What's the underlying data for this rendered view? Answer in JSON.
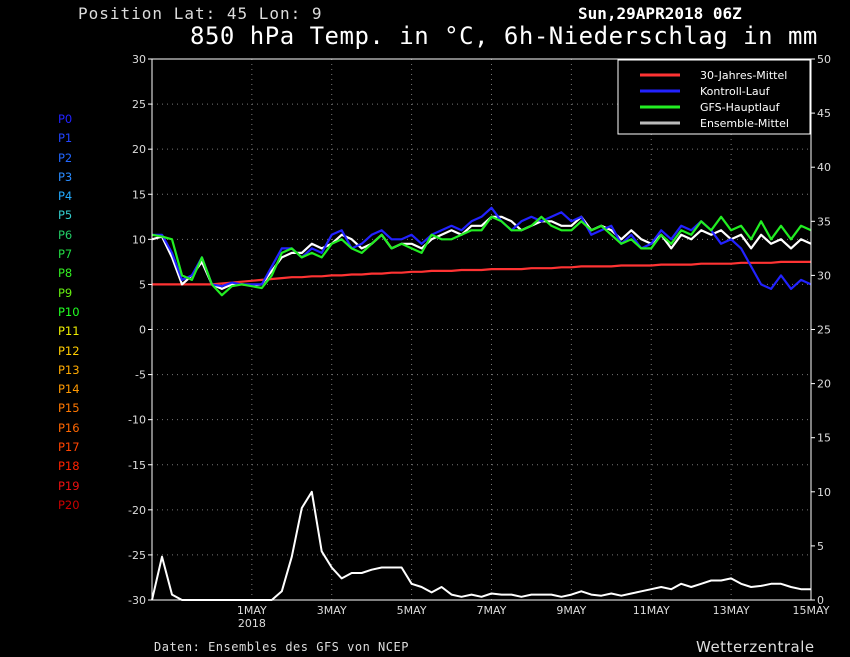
{
  "header": {
    "position": "Position   Lat: 45 Lon: 9",
    "date": "Sun,29APR2018 06Z",
    "title": "850 hPa Temp. in °C, 6h-Niederschlag in mm"
  },
  "footer": {
    "credit": "Daten: Ensembles des GFS von NCEP",
    "brand": "Wetterzentrale"
  },
  "members": {
    "labels": [
      "P0",
      "P1",
      "P2",
      "P3",
      "P4",
      "P5",
      "P6",
      "P7",
      "P8",
      "P9",
      "P10",
      "P11",
      "P12",
      "P13",
      "P14",
      "P15",
      "P16",
      "P17",
      "P18",
      "P19",
      "P20"
    ],
    "colors": [
      "#2222ff",
      "#2244ff",
      "#2266ff",
      "#2a8cff",
      "#22aaff",
      "#33cccc",
      "#22cc66",
      "#22dd44",
      "#33ee22",
      "#66ee11",
      "#22ff22",
      "#eeee00",
      "#ffcc00",
      "#ffaa00",
      "#ff9900",
      "#ff7700",
      "#ff6600",
      "#ff4400",
      "#ff2200",
      "#ee1111",
      "#cc0000"
    ]
  },
  "chart_data": {
    "type": "line",
    "left_axis": {
      "label": "",
      "ylim": [
        -30,
        30
      ],
      "ticks": [
        "30",
        "25",
        "20",
        "15",
        "10",
        "5",
        "0",
        "-5",
        "-10",
        "-15",
        "-20",
        "-25",
        "-30"
      ]
    },
    "right_axis": {
      "label": "",
      "ylim": [
        0,
        50
      ],
      "ticks": [
        "50",
        "45",
        "40",
        "35",
        "30",
        "25",
        "20",
        "15",
        "10",
        "5",
        "0"
      ]
    },
    "x_ticks": [
      {
        "step": 10,
        "label": "1MAY",
        "sub": "2018"
      },
      {
        "step": 18,
        "label": "3MAY",
        "sub": ""
      },
      {
        "step": 26,
        "label": "5MAY",
        "sub": ""
      },
      {
        "step": 34,
        "label": "7MAY",
        "sub": ""
      },
      {
        "step": 42,
        "label": "9MAY",
        "sub": ""
      },
      {
        "step": 50,
        "label": "11MAY",
        "sub": ""
      },
      {
        "step": 58,
        "label": "13MAY",
        "sub": ""
      },
      {
        "step": 66,
        "label": "15MAY",
        "sub": ""
      }
    ],
    "x_steps_total": 66,
    "grid": true,
    "legend_position": "top-right",
    "legend": [
      {
        "name": "30-Jahres-Mittel",
        "color": "#ff3333"
      },
      {
        "name": "Kontroll-Lauf",
        "color": "#2222ff"
      },
      {
        "name": "GFS-Hauptlauf",
        "color": "#22ee22"
      },
      {
        "name": "Ensemble-Mittel",
        "color": "#bbbbbb"
      }
    ],
    "series": [
      {
        "name": "30-Jahres-Mittel",
        "axis": "left",
        "color": "#ff3333",
        "values": [
          5.0,
          5.0,
          5.0,
          5.0,
          5.0,
          5.0,
          5.0,
          5.1,
          5.2,
          5.3,
          5.4,
          5.5,
          5.6,
          5.7,
          5.8,
          5.8,
          5.9,
          5.9,
          6.0,
          6.0,
          6.1,
          6.1,
          6.2,
          6.2,
          6.3,
          6.3,
          6.4,
          6.4,
          6.5,
          6.5,
          6.5,
          6.6,
          6.6,
          6.6,
          6.7,
          6.7,
          6.7,
          6.7,
          6.8,
          6.8,
          6.8,
          6.9,
          6.9,
          7.0,
          7.0,
          7.0,
          7.0,
          7.1,
          7.1,
          7.1,
          7.1,
          7.2,
          7.2,
          7.2,
          7.2,
          7.3,
          7.3,
          7.3,
          7.3,
          7.4,
          7.4,
          7.4,
          7.4,
          7.5,
          7.5,
          7.5,
          7.5
        ]
      },
      {
        "name": "Ensemble-Mittel",
        "axis": "left",
        "color": "#ffffff",
        "values": [
          10.0,
          10.3,
          8.0,
          5.0,
          6.0,
          7.5,
          5.0,
          4.5,
          5.0,
          5.0,
          4.9,
          5.0,
          6.5,
          8.0,
          8.5,
          8.5,
          9.5,
          9.0,
          9.5,
          10.5,
          10.0,
          9.0,
          9.5,
          10.5,
          9.0,
          9.5,
          9.5,
          9.0,
          10.0,
          10.5,
          11.0,
          10.5,
          11.5,
          11.5,
          12.5,
          12.5,
          12.0,
          11.0,
          11.5,
          12.0,
          12.0,
          11.5,
          11.5,
          12.5,
          11.0,
          11.5,
          11.0,
          10.0,
          11.0,
          10.0,
          9.5,
          10.5,
          9.0,
          10.5,
          10.0,
          11.0,
          10.5,
          11.0,
          10.0,
          10.5,
          9.0,
          10.5,
          9.5,
          10.0,
          9.0,
          10.0,
          9.5
        ]
      },
      {
        "name": "Kontroll-Lauf",
        "axis": "left",
        "color": "#2222ff",
        "values": [
          10.5,
          10.5,
          8.5,
          5.5,
          6.0,
          8.0,
          5.0,
          4.8,
          5.2,
          5.0,
          5.0,
          5.0,
          7.0,
          9.0,
          9.0,
          8.0,
          9.0,
          8.5,
          10.5,
          11.0,
          9.0,
          9.5,
          10.5,
          11.0,
          10.0,
          10.0,
          10.5,
          9.5,
          10.5,
          11.0,
          11.5,
          11.0,
          12.0,
          12.5,
          13.5,
          12.0,
          11.0,
          12.0,
          12.5,
          12.0,
          12.5,
          13.0,
          12.0,
          12.5,
          10.5,
          11.0,
          11.5,
          9.5,
          10.5,
          9.0,
          9.5,
          11.0,
          10.0,
          11.5,
          11.0,
          12.0,
          11.0,
          9.5,
          10.0,
          9.0,
          7.0,
          5.0,
          4.5,
          6.0,
          4.5,
          5.5,
          5.0
        ]
      },
      {
        "name": "GFS-Hauptlauf",
        "axis": "left",
        "color": "#22ee22",
        "values": [
          10.5,
          10.3,
          10.0,
          6.0,
          5.5,
          8.0,
          5.0,
          3.8,
          4.8,
          5.0,
          4.8,
          4.6,
          6.0,
          8.5,
          9.0,
          8.0,
          8.5,
          8.0,
          9.5,
          10.0,
          9.0,
          8.5,
          9.5,
          10.5,
          9.0,
          9.5,
          9.0,
          8.5,
          10.5,
          10.0,
          10.0,
          10.5,
          11.0,
          11.0,
          12.5,
          12.0,
          11.0,
          11.0,
          11.5,
          12.5,
          11.5,
          11.0,
          11.0,
          12.0,
          11.0,
          11.5,
          10.5,
          9.5,
          10.0,
          9.0,
          9.0,
          10.5,
          9.5,
          11.0,
          10.5,
          12.0,
          11.0,
          12.5,
          11.0,
          11.5,
          10.0,
          12.0,
          10.0,
          11.5,
          10.0,
          11.5,
          11.0
        ]
      },
      {
        "name": "Ensemble-Mittel Niederschlag",
        "axis": "right",
        "color": "#ffffff",
        "values": [
          0,
          4.0,
          0.5,
          0,
          0,
          0,
          0,
          0,
          0,
          0,
          0,
          0,
          0,
          0.8,
          4.0,
          8.5,
          10.0,
          4.5,
          3.0,
          2.0,
          2.5,
          2.5,
          2.8,
          3.0,
          3.0,
          3.0,
          1.5,
          1.2,
          0.7,
          1.2,
          0.5,
          0.3,
          0.5,
          0.3,
          0.6,
          0.5,
          0.5,
          0.3,
          0.5,
          0.5,
          0.5,
          0.3,
          0.5,
          0.8,
          0.5,
          0.4,
          0.6,
          0.4,
          0.6,
          0.8,
          1.0,
          1.2,
          1.0,
          1.5,
          1.2,
          1.5,
          1.8,
          1.8,
          2.0,
          1.5,
          1.2,
          1.3,
          1.5,
          1.5,
          1.2,
          1.0,
          1.0
        ]
      }
    ]
  }
}
